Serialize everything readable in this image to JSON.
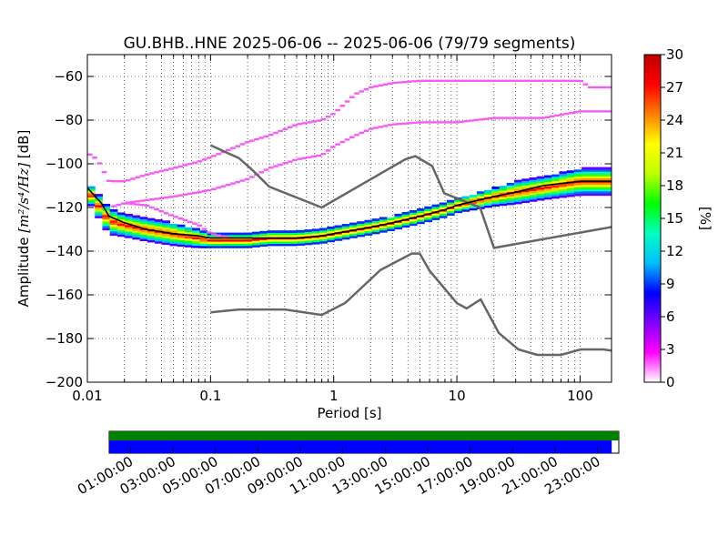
{
  "chart_data": {
    "type": "heatmap",
    "title": "GU.BHB..HNE   2025-06-06 -- 2025-06-06  (79/79 segments)",
    "xlabel": "Period [s]",
    "ylabel_main": "Amplitude ",
    "ylabel_math": "[m²/s⁴/Hz]",
    "ylabel_unit": " [dB]",
    "x_scale": "log",
    "xlim": [
      0.01,
      180
    ],
    "ylim": [
      -200,
      -50
    ],
    "grid": true,
    "x_ticks": [
      {
        "value": 0.01,
        "label": "0.01"
      },
      {
        "value": 0.1,
        "label": "0.1"
      },
      {
        "value": 1,
        "label": "1"
      },
      {
        "value": 10,
        "label": "10"
      },
      {
        "value": 100,
        "label": "100"
      }
    ],
    "y_ticks": [
      {
        "value": -60,
        "label": "−60"
      },
      {
        "value": -80,
        "label": "−80"
      },
      {
        "value": -100,
        "label": "−100"
      },
      {
        "value": -120,
        "label": "−120"
      },
      {
        "value": -140,
        "label": "−140"
      },
      {
        "value": -160,
        "label": "−160"
      },
      {
        "value": -180,
        "label": "−180"
      },
      {
        "value": -200,
        "label": "−200"
      }
    ],
    "colorbar": {
      "label": "[%]",
      "range": [
        0,
        30
      ],
      "ticks": [
        "0",
        "3",
        "6",
        "9",
        "12",
        "15",
        "18",
        "21",
        "24",
        "27",
        "30"
      ],
      "colors": [
        "#ffffff",
        "#ff00ff",
        "#7f00ff",
        "#0000ff",
        "#00bfff",
        "#00ffbf",
        "#00ff00",
        "#bfff00",
        "#ffff00",
        "#ff7f00",
        "#ff0000",
        "#c00000"
      ]
    },
    "median_line": {
      "name": "",
      "color": "#000000",
      "points": [
        [
          0.01,
          -111
        ],
        [
          0.013,
          -118
        ],
        [
          0.015,
          -124
        ],
        [
          0.02,
          -127
        ],
        [
          0.03,
          -130
        ],
        [
          0.05,
          -132
        ],
        [
          0.08,
          -133
        ],
        [
          0.1,
          -134
        ],
        [
          0.2,
          -134
        ],
        [
          0.3,
          -134
        ],
        [
          0.5,
          -134
        ],
        [
          0.8,
          -133
        ],
        [
          1,
          -132
        ],
        [
          2,
          -129
        ],
        [
          3,
          -127
        ],
        [
          5,
          -124
        ],
        [
          8,
          -121
        ],
        [
          10,
          -119
        ],
        [
          20,
          -115
        ],
        [
          30,
          -113
        ],
        [
          50,
          -110
        ],
        [
          100,
          -108
        ],
        [
          180,
          -108
        ]
      ]
    },
    "heat_band": [
      [
        0.01,
        -112,
        4
      ],
      [
        0.015,
        -126,
        6
      ],
      [
        0.02,
        -128,
        5
      ],
      [
        0.03,
        -130,
        5
      ],
      [
        0.05,
        -132,
        5
      ],
      [
        0.08,
        -134,
        4
      ],
      [
        0.1,
        -135,
        3
      ],
      [
        0.2,
        -135,
        3
      ],
      [
        0.3,
        -134,
        3
      ],
      [
        0.5,
        -134,
        3
      ],
      [
        0.8,
        -133,
        3
      ],
      [
        1,
        -132,
        3
      ],
      [
        2,
        -129,
        3
      ],
      [
        3,
        -127,
        3
      ],
      [
        5,
        -124,
        3
      ],
      [
        8,
        -121,
        3
      ],
      [
        10,
        -119,
        3
      ],
      [
        20,
        -115,
        4
      ],
      [
        30,
        -113,
        5
      ],
      [
        50,
        -111,
        5
      ],
      [
        100,
        -108,
        6
      ],
      [
        180,
        -108,
        6
      ]
    ],
    "outlier_traces": [
      [
        [
          0.01,
          -95
        ],
        [
          0.012,
          -98
        ],
        [
          0.015,
          -108
        ],
        [
          0.02,
          -108
        ],
        [
          0.03,
          -105
        ],
        [
          0.05,
          -102
        ],
        [
          0.08,
          -99
        ],
        [
          0.1,
          -97
        ],
        [
          0.2,
          -90
        ],
        [
          0.3,
          -87
        ],
        [
          0.5,
          -82
        ],
        [
          0.8,
          -80
        ],
        [
          1,
          -77
        ],
        [
          1.5,
          -68
        ],
        [
          2,
          -65
        ],
        [
          3,
          -63
        ],
        [
          5,
          -62
        ],
        [
          10,
          -62
        ],
        [
          50,
          -62
        ],
        [
          100,
          -62
        ],
        [
          120,
          -65
        ],
        [
          180,
          -65
        ]
      ],
      [
        [
          0.02,
          -118
        ],
        [
          0.05,
          -115
        ],
        [
          0.1,
          -112
        ],
        [
          0.2,
          -107
        ],
        [
          0.3,
          -102
        ],
        [
          0.5,
          -98
        ],
        [
          0.8,
          -96
        ],
        [
          1,
          -92
        ],
        [
          1.5,
          -87
        ],
        [
          2,
          -84
        ],
        [
          3,
          -82
        ],
        [
          5,
          -81
        ],
        [
          10,
          -81
        ],
        [
          20,
          -79
        ],
        [
          50,
          -79
        ],
        [
          100,
          -76
        ],
        [
          180,
          -76
        ]
      ],
      [
        [
          0.015,
          -120
        ],
        [
          0.02,
          -118
        ],
        [
          0.03,
          -119
        ],
        [
          0.05,
          -124
        ],
        [
          0.08,
          -128
        ],
        [
          0.1,
          -132
        ],
        [
          0.15,
          -134
        ]
      ]
    ],
    "noise_models": {
      "color": "#666666",
      "high": [
        [
          0.1,
          -91.5
        ],
        [
          0.17,
          -97.4
        ],
        [
          0.22,
          -103
        ],
        [
          0.3,
          -110.5
        ],
        [
          0.8,
          -120
        ],
        [
          3.8,
          -98
        ],
        [
          4.6,
          -96.5
        ],
        [
          6.3,
          -101
        ],
        [
          7.9,
          -113.5
        ],
        [
          15.4,
          -120
        ],
        [
          20,
          -138.5
        ],
        [
          354.8,
          -126
        ]
      ],
      "low": [
        [
          0.1,
          -168
        ],
        [
          0.17,
          -166.7
        ],
        [
          0.4,
          -166.7
        ],
        [
          0.8,
          -169.2
        ],
        [
          1.24,
          -163.7
        ],
        [
          2.4,
          -148.6
        ],
        [
          4.3,
          -141.1
        ],
        [
          5,
          -141.1
        ],
        [
          6,
          -149
        ],
        [
          10,
          -163.8
        ],
        [
          12,
          -166.2
        ],
        [
          15.6,
          -162.1
        ],
        [
          21.9,
          -177.5
        ],
        [
          31.6,
          -185
        ],
        [
          45,
          -187.5
        ],
        [
          70,
          -187.5
        ],
        [
          101,
          -185
        ],
        [
          154,
          -185
        ],
        [
          328,
          -187.5
        ]
      ]
    },
    "timeline": {
      "labels": [
        "01:00:00",
        "03:00:00",
        "05:00:00",
        "07:00:00",
        "09:00:00",
        "11:00:00",
        "13:00:00",
        "15:00:00",
        "17:00:00",
        "19:00:00",
        "21:00:00",
        "23:00:00"
      ],
      "hours": [
        1,
        3,
        5,
        7,
        9,
        11,
        13,
        15,
        17,
        19,
        21,
        23
      ],
      "range_hours": [
        0,
        24
      ],
      "data_bar_color": "#008000",
      "used_bar_color": "#0000ff",
      "used_fraction": 0.986
    }
  }
}
